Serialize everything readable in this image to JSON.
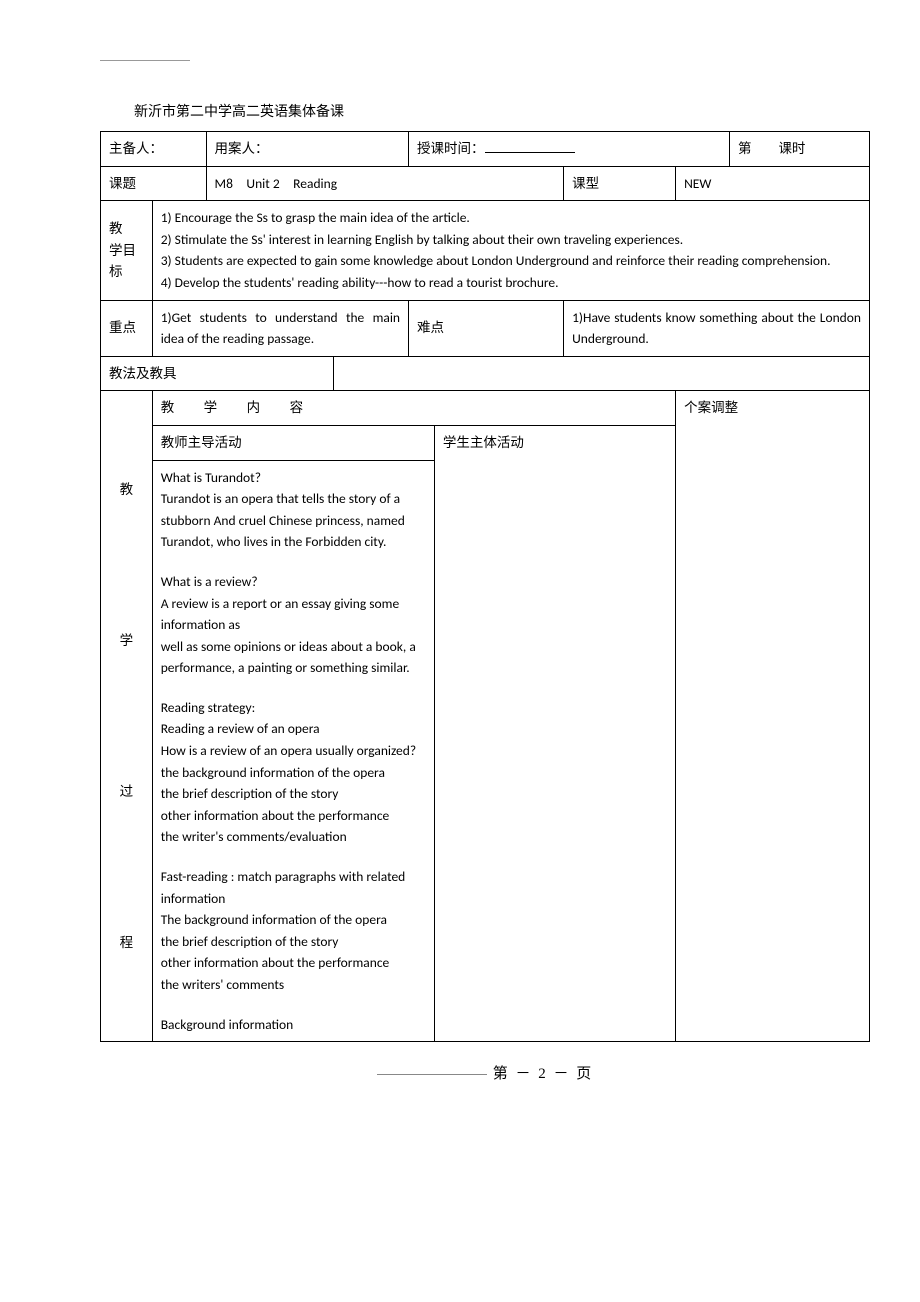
{
  "doc_title": "新沂市第二中学高二英语集体备课",
  "row1": {
    "preparer_label": "主备人：",
    "user_label": "用案人：",
    "time_label": "授课时间：",
    "period_prefix": "第",
    "period_suffix": "课时"
  },
  "row2": {
    "topic_label": "课题",
    "topic_value": "M8　Unit 2　Reading",
    "type_label": "课型",
    "type_value": "NEW"
  },
  "objectives": {
    "label": "教　学目标",
    "items": [
      "1) Encourage the Ss to grasp the main idea of the article.",
      "2) Stimulate the Ss' interest in learning English by talking about their own traveling experiences.",
      "3) Students are expected to gain some knowledge about London Underground and reinforce their reading comprehension.",
      "4) Develop the students' reading ability---how to read a tourist brochure."
    ]
  },
  "keypoint": {
    "label": "重点",
    "text": "1)Get students to understand the main idea of the reading passage."
  },
  "difficulty": {
    "label": "难点",
    "text": "1)Have students know something about the London Underground."
  },
  "method_label": "教法及教具",
  "process": {
    "vertical_label": "教\n\n\n\n学\n\n\n\n过\n\n\n\n程",
    "content_label": "教　学　内　容",
    "adjust_label": "个案调整",
    "teacher_label": "教师主导活动",
    "student_label": "学生主体活动"
  },
  "content_body": [
    "What is Turandot?",
    "Turandot is an opera that tells the story of a stubborn And cruel Chinese princess, named Turandot, who lives in the Forbidden city.",
    "",
    "What is a review?",
    "A review is a report or an essay giving some information as",
    "well as some opinions or ideas about a book, a performance, a painting or something similar.",
    "",
    "Reading strategy:",
    "Reading a review of an opera",
    "How is a review of an opera usually organized?",
    "the background information of the opera",
    "the brief description of the story",
    "other information about the performance",
    "the writer's comments/evaluation",
    "",
    "Fast-reading : match paragraphs with related information",
    "The background information of the opera",
    "the brief description of the story",
    "other information about the performance",
    "the writers' comments",
    "",
    "Background information"
  ],
  "footer": "第 － 2 － 页"
}
